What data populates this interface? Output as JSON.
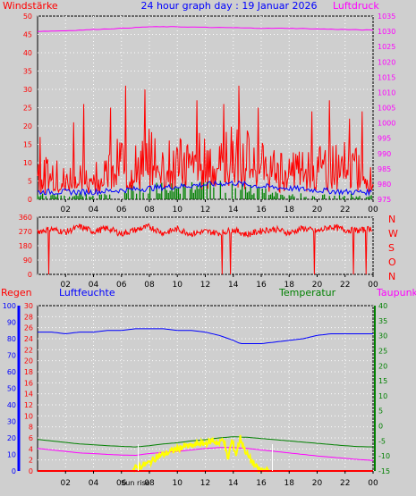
{
  "header": {
    "left_label": "Windstärke",
    "title": "24 hour graph day : 19 Januar 2026",
    "right_label": "Luftdruck"
  },
  "colors": {
    "background": "#cfcfcf",
    "wind": "#ff0000",
    "gust": "#0000ff",
    "wind_bars": "#008000",
    "pressure": "#ff00ff",
    "winddir": "#ff0000",
    "humidity": "#0000ff",
    "temperature": "#008000",
    "dewpoint": "#ff00ff",
    "solar": "#ffff00",
    "rain": "#ff0000",
    "axis_left": "#ff0000",
    "axis_blue": "#0000ff",
    "axis_green": "#008000",
    "tick_text": "#000080"
  },
  "chart_data": [
    {
      "id": "wind_pressure",
      "type": "line",
      "title": "24 hour graph day : 19 Januar 2026",
      "x_ticks": [
        "02",
        "04",
        "06",
        "08",
        "10",
        "12",
        "14",
        "16",
        "18",
        "20",
        "22",
        "00"
      ],
      "y_left": {
        "label": "Windstärke",
        "min": 0,
        "max": 50,
        "ticks": [
          0,
          5,
          10,
          15,
          20,
          25,
          30,
          35,
          40,
          45,
          50
        ]
      },
      "y_right": {
        "label": "Luftdruck",
        "min": 975,
        "max": 1035,
        "ticks": [
          975,
          980,
          985,
          990,
          995,
          1000,
          1005,
          1010,
          1015,
          1020,
          1025,
          1030,
          1035
        ]
      },
      "series": [
        {
          "key": "gust",
          "color": "#ff0000",
          "axis": "left",
          "style": "spiky",
          "x": [
            0,
            2,
            4,
            5,
            6,
            7,
            8,
            9,
            10,
            11,
            12,
            13,
            14,
            15,
            16,
            17,
            18,
            19,
            20,
            21,
            22,
            23,
            24
          ],
          "y": [
            8,
            7,
            7,
            9,
            12,
            10,
            13,
            12,
            11,
            12,
            13,
            12,
            14,
            13,
            11,
            9,
            10,
            10,
            11,
            10,
            11,
            9,
            8
          ],
          "peaks": [
            [
              0.2,
              17
            ],
            [
              2.6,
              21
            ],
            [
              3.3,
              26
            ],
            [
              5.2,
              25
            ],
            [
              6.3,
              31
            ],
            [
              7.7,
              30
            ],
            [
              11.4,
              27
            ],
            [
              13.3,
              26
            ],
            [
              14.4,
              31
            ],
            [
              15.8,
              25
            ],
            [
              19.6,
              24
            ],
            [
              20.9,
              27
            ],
            [
              22.3,
              22
            ],
            [
              23.2,
              24
            ]
          ]
        },
        {
          "key": "speed",
          "color": "#0000ff",
          "axis": "left",
          "style": "wiggle",
          "x": [
            0,
            2,
            4,
            6,
            8,
            10,
            12,
            14,
            16,
            18,
            20,
            22,
            24
          ],
          "y": [
            2,
            2,
            2,
            2.5,
            3,
            3.5,
            4,
            4.5,
            3.5,
            3,
            2.5,
            2,
            2
          ]
        },
        {
          "key": "speed_bars",
          "color": "#008000",
          "axis": "left",
          "style": "bars",
          "x": [
            0,
            2,
            4,
            6,
            8,
            10,
            12,
            14,
            16,
            18,
            20,
            22,
            24
          ],
          "y": [
            1,
            1,
            1,
            2,
            3,
            3,
            3,
            3,
            2,
            1,
            1,
            1,
            1
          ]
        },
        {
          "key": "pressure",
          "color": "#ff00ff",
          "axis": "right",
          "style": "line",
          "x": [
            0,
            2,
            4,
            6,
            8,
            10,
            12,
            14,
            16,
            18,
            20,
            22,
            24
          ],
          "y": [
            1030,
            1030.2,
            1030.6,
            1031,
            1031.5,
            1031.5,
            1031.3,
            1031.2,
            1031,
            1031,
            1030.8,
            1030.6,
            1030.4
          ]
        }
      ]
    },
    {
      "id": "wind_direction",
      "type": "line",
      "x_ticks": [
        "02",
        "04",
        "06",
        "08",
        "10",
        "12",
        "14",
        "16",
        "18",
        "20",
        "22",
        "00"
      ],
      "y_left": {
        "min": 0,
        "max": 360,
        "ticks": [
          0,
          90,
          180,
          270,
          360
        ]
      },
      "y_right_labels": [
        "N",
        "W",
        "S",
        "O",
        "N"
      ],
      "series": [
        {
          "key": "direction",
          "color": "#ff0000",
          "x": [
            0,
            1,
            2,
            3,
            4,
            5,
            6,
            7,
            8,
            9,
            10,
            11,
            12,
            13,
            14,
            15,
            16,
            17,
            18,
            19,
            20,
            21,
            22,
            23,
            24
          ],
          "y": [
            270,
            285,
            265,
            300,
            270,
            290,
            255,
            280,
            300,
            260,
            285,
            255,
            270,
            260,
            280,
            250,
            275,
            285,
            260,
            290,
            270,
            300,
            280,
            275,
            290
          ],
          "drops": [
            0.8,
            13.2,
            13.8,
            19.8,
            22.6,
            23.5
          ]
        }
      ]
    },
    {
      "id": "temp_humidity",
      "type": "line",
      "legend": [
        "Regen",
        "Luftfeuchte",
        "Temperatur",
        "Taupunkt"
      ],
      "x_ticks": [
        "02",
        "04",
        "06",
        "08",
        "10",
        "12",
        "14",
        "16",
        "18",
        "20",
        "22",
        "00"
      ],
      "sunrise_label": "Sun rise",
      "axes": {
        "humidity": {
          "label": "Luftfeuchte",
          "min": 0,
          "max": 100,
          "ticks": [
            0,
            10,
            20,
            30,
            40,
            50,
            60,
            70,
            80,
            90,
            100
          ]
        },
        "rain": {
          "label": "Regen",
          "min": 0,
          "max": 30,
          "ticks": [
            0,
            2,
            4,
            6,
            8,
            10,
            12,
            14,
            16,
            18,
            20,
            22,
            24,
            26,
            28,
            30
          ]
        },
        "temperature": {
          "label": "Temperatur",
          "min": -15,
          "max": 40,
          "ticks": [
            -15,
            -10,
            -5,
            0,
            5,
            10,
            15,
            20,
            25,
            30,
            35,
            40
          ]
        }
      },
      "series": [
        {
          "key": "humidity",
          "name": "Luftfeuchte",
          "color": "#0000ff",
          "axis": "humidity",
          "x": [
            0,
            1,
            2,
            3,
            4,
            5,
            6,
            7,
            8,
            9,
            10,
            11,
            12,
            13,
            14,
            14.5,
            15,
            16,
            17,
            18,
            19,
            20,
            21,
            22,
            23,
            24
          ],
          "y": [
            84,
            84,
            83,
            84,
            84,
            85,
            85,
            86,
            86,
            86,
            85,
            85,
            84,
            82,
            79,
            77,
            77,
            77,
            78,
            79,
            80,
            82,
            83,
            83,
            83,
            83
          ]
        },
        {
          "key": "temperature",
          "name": "Temperatur",
          "color": "#008000",
          "axis": "temperature",
          "x": [
            0,
            1,
            2,
            3,
            4,
            5,
            6,
            7,
            8,
            9,
            10,
            11,
            12,
            13,
            14,
            15,
            16,
            17,
            18,
            19,
            20,
            21,
            22,
            23,
            24
          ],
          "y": [
            -4.5,
            -5,
            -5.5,
            -6,
            -6.3,
            -6.6,
            -6.8,
            -7,
            -6.6,
            -6,
            -5.6,
            -5,
            -4.6,
            -4,
            -3.6,
            -3.8,
            -4.2,
            -4.6,
            -5,
            -5.4,
            -5.8,
            -6.2,
            -6.6,
            -6.9,
            -7
          ]
        },
        {
          "key": "dewpoint",
          "name": "Taupunkt",
          "color": "#ff00ff",
          "axis": "temperature",
          "x": [
            0,
            1,
            2,
            3,
            4,
            5,
            6,
            7,
            8,
            9,
            10,
            11,
            12,
            13,
            14,
            15,
            16,
            17,
            18,
            19,
            20,
            21,
            22,
            23,
            24
          ],
          "y": [
            -7.5,
            -8,
            -8.5,
            -9,
            -9.2,
            -9.5,
            -9.7,
            -9.8,
            -9.2,
            -8.8,
            -8.5,
            -8,
            -7.5,
            -7.2,
            -7.2,
            -7.5,
            -8,
            -8.5,
            -9,
            -9.5,
            -10,
            -10.4,
            -10.8,
            -11.2,
            -11.5
          ]
        },
        {
          "key": "solar",
          "color": "#ffff00",
          "axis": "rain",
          "x": [
            6.8,
            7,
            7.5,
            8,
            8.5,
            9,
            9.5,
            10,
            10.5,
            11,
            11.5,
            12,
            12.5,
            13,
            13.3,
            13.6,
            13.9,
            14.2,
            14.5,
            14.8,
            15.1,
            15.4,
            15.7,
            16,
            16.3,
            16.6
          ],
          "y": [
            0,
            0.5,
            1,
            1.5,
            2.5,
            3,
            3.5,
            4,
            4.5,
            4.5,
            5,
            5,
            5.5,
            5,
            6,
            2,
            5.5,
            3,
            6,
            4,
            2.5,
            1.5,
            0.5,
            0.2,
            0.1,
            0
          ]
        },
        {
          "key": "rain",
          "name": "Regen",
          "color": "#ff0000",
          "axis": "rain",
          "x": [
            0,
            24
          ],
          "y": [
            0,
            0
          ]
        }
      ]
    }
  ]
}
